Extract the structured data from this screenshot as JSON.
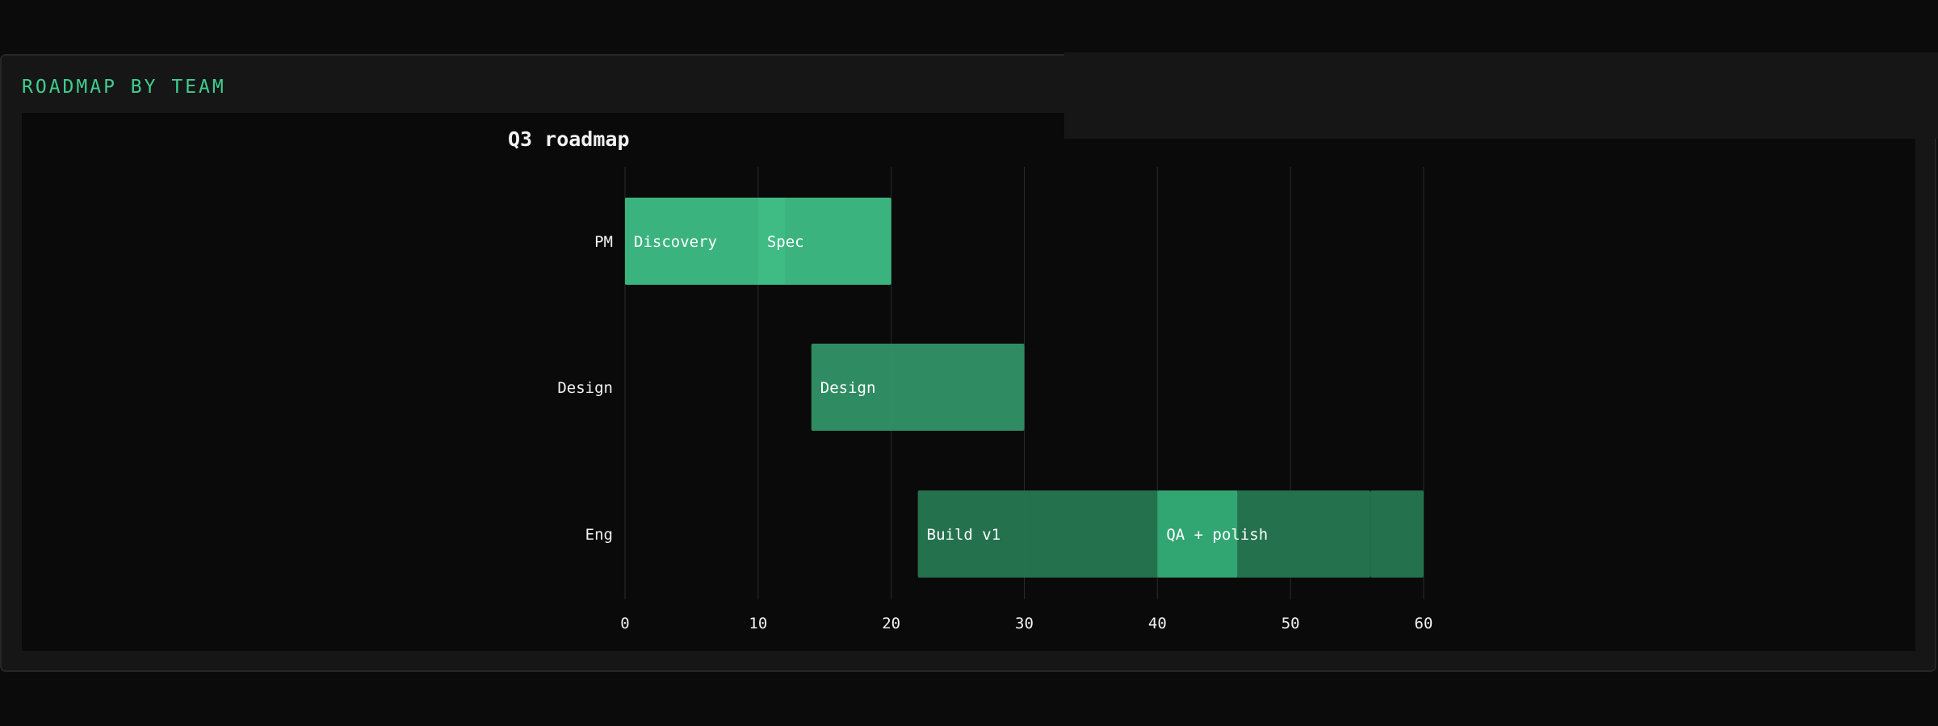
{
  "card": {
    "title": "ROADMAP BY TEAM"
  },
  "colors": {
    "background": "#0b0b0b",
    "card": "#161616",
    "accent": "#3ecf8e",
    "grid": "#2a2a2a",
    "text": "#f2f2f2"
  },
  "chart_data": {
    "type": "gantt",
    "title": "Q3 roadmap",
    "xlabel": "",
    "ylabel": "",
    "xlim": [
      0,
      60
    ],
    "xticks": [
      0,
      10,
      20,
      30,
      40,
      50,
      60
    ],
    "grid": true,
    "legend": "none",
    "categories": [
      "PM",
      "Design",
      "Eng"
    ],
    "tasks": [
      {
        "row": "PM",
        "label": "Discovery",
        "start": 0,
        "end": 12,
        "color": "#3ebd85"
      },
      {
        "row": "PM",
        "label": "Spec",
        "start": 10,
        "end": 20,
        "color": "#3ebd85"
      },
      {
        "row": "Design",
        "label": "Design",
        "start": 14,
        "end": 30,
        "color": "#319367"
      },
      {
        "row": "Eng",
        "label": "Build v1",
        "start": 22,
        "end": 56,
        "color": "#267752"
      },
      {
        "row": "Eng",
        "label": "QA + polish",
        "start": 40,
        "end": 46,
        "color": "#33a874"
      },
      {
        "row": "Eng",
        "label": "",
        "start": 56,
        "end": 60,
        "color": "#267752"
      }
    ]
  }
}
